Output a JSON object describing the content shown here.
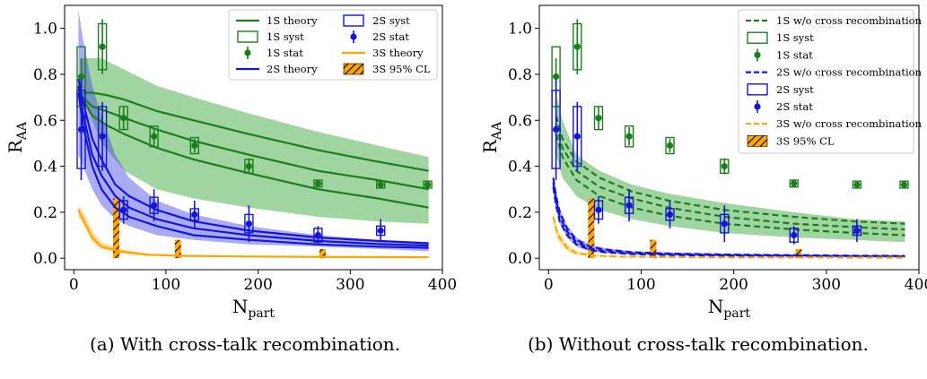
{
  "chart_data": [
    {
      "type": "line",
      "caption": "(a) With cross-talk recombination.",
      "xlabel": "N",
      "xlabel_sub": "part",
      "ylabel": "R",
      "ylabel_sub": "AA",
      "xlim": [
        -10,
        400
      ],
      "ylim": [
        -0.05,
        1.1
      ],
      "xticks": [
        "0",
        "100",
        "200",
        "300",
        "400"
      ],
      "yticks": [
        "0.0",
        "0.2",
        "0.4",
        "0.6",
        "0.8",
        "1.0"
      ],
      "legend_position": "top-right",
      "legend": [
        {
          "label": "1S theory",
          "kind": "line",
          "color": "#1a7f1a"
        },
        {
          "label": "1S syst",
          "kind": "box",
          "color": "#1a7f1a"
        },
        {
          "label": "1S stat",
          "kind": "point",
          "color": "#1a7f1a"
        },
        {
          "label": "2S theory",
          "kind": "line",
          "color": "#1515d6"
        },
        {
          "label": "2S syst",
          "kind": "box",
          "color": "#1515d6"
        },
        {
          "label": "2S stat",
          "kind": "point",
          "color": "#1515d6"
        },
        {
          "label": "3S theory",
          "kind": "line",
          "color": "#ffa500"
        },
        {
          "label": "3S 95% CL",
          "kind": "hatch",
          "color": "#ffa500"
        }
      ],
      "bands": [
        {
          "name": "1S",
          "color": "#2ca02c",
          "opacity": 0.45,
          "x": [
            8,
            30,
            55,
            90,
            130,
            190,
            265,
            330,
            385
          ],
          "upper": [
            0.87,
            0.87,
            0.82,
            0.75,
            0.7,
            0.63,
            0.55,
            0.49,
            0.44
          ],
          "lower": [
            0.72,
            0.5,
            0.38,
            0.3,
            0.26,
            0.22,
            0.18,
            0.16,
            0.15
          ]
        },
        {
          "name": "2S",
          "color": "#4444e6",
          "opacity": 0.45,
          "x": [
            5,
            10,
            20,
            30,
            45,
            60,
            90,
            130,
            190,
            265,
            330,
            385
          ],
          "upper": [
            1.08,
            0.95,
            0.75,
            0.62,
            0.45,
            0.35,
            0.25,
            0.19,
            0.14,
            0.1,
            0.08,
            0.07
          ],
          "lower": [
            0.45,
            0.4,
            0.3,
            0.23,
            0.17,
            0.14,
            0.1,
            0.08,
            0.06,
            0.05,
            0.04,
            0.03
          ]
        },
        {
          "name": "3S",
          "color": "#ffa500",
          "opacity": 0.4,
          "x": [
            5,
            10,
            20,
            30,
            50,
            80,
            120,
            200,
            300,
            385
          ],
          "upper": [
            0.23,
            0.2,
            0.12,
            0.07,
            0.04,
            0.02,
            0.015,
            0.01,
            0.008,
            0.006
          ],
          "lower": [
            0.18,
            0.15,
            0.07,
            0.04,
            0.02,
            0.01,
            0.008,
            0.005,
            0.004,
            0.003
          ]
        }
      ],
      "series": [
        {
          "name": "1S theory",
          "color": "#1a7f1a",
          "width": 2.2,
          "dash": "",
          "x": [
            10,
            20,
            35,
            55,
            90,
            130,
            190,
            265,
            330,
            385
          ],
          "y": [
            0.72,
            0.72,
            0.71,
            0.69,
            0.64,
            0.6,
            0.54,
            0.47,
            0.42,
            0.38
          ]
        },
        {
          "name": "1S theory",
          "color": "#1a7f1a",
          "width": 2.2,
          "dash": "",
          "x": [
            10,
            20,
            35,
            55,
            90,
            130,
            190,
            265,
            330,
            385
          ],
          "y": [
            0.7,
            0.66,
            0.64,
            0.61,
            0.56,
            0.51,
            0.45,
            0.38,
            0.34,
            0.3
          ]
        },
        {
          "name": "1S theory",
          "color": "#1a7f1a",
          "width": 2.2,
          "dash": "",
          "x": [
            10,
            20,
            35,
            55,
            90,
            130,
            190,
            265,
            330,
            385
          ],
          "y": [
            0.69,
            0.62,
            0.58,
            0.54,
            0.48,
            0.43,
            0.37,
            0.3,
            0.26,
            0.22
          ]
        },
        {
          "name": "2S theory",
          "color": "#1515d6",
          "width": 2.2,
          "dash": "",
          "x": [
            5,
            10,
            20,
            30,
            45,
            60,
            90,
            130,
            190,
            265,
            330,
            385
          ],
          "y": [
            0.78,
            0.68,
            0.52,
            0.43,
            0.32,
            0.27,
            0.21,
            0.16,
            0.12,
            0.09,
            0.075,
            0.065
          ]
        },
        {
          "name": "2S theory",
          "color": "#1515d6",
          "width": 2.2,
          "dash": "",
          "x": [
            5,
            10,
            20,
            30,
            45,
            60,
            90,
            130,
            190,
            265,
            330,
            385
          ],
          "y": [
            0.75,
            0.63,
            0.45,
            0.36,
            0.27,
            0.22,
            0.17,
            0.13,
            0.1,
            0.075,
            0.062,
            0.055
          ]
        },
        {
          "name": "2S theory",
          "color": "#1515d6",
          "width": 2.2,
          "dash": "",
          "x": [
            5,
            10,
            20,
            30,
            45,
            60,
            90,
            130,
            190,
            265,
            330,
            385
          ],
          "y": [
            0.72,
            0.58,
            0.4,
            0.3,
            0.22,
            0.18,
            0.14,
            0.1,
            0.08,
            0.06,
            0.05,
            0.045
          ]
        },
        {
          "name": "3S theory",
          "color": "#ffa500",
          "width": 2.2,
          "dash": "",
          "x": [
            5,
            10,
            20,
            30,
            50,
            80,
            120,
            200,
            300,
            385
          ],
          "y": [
            0.21,
            0.17,
            0.09,
            0.05,
            0.03,
            0.015,
            0.01,
            0.007,
            0.005,
            0.004
          ]
        }
      ],
      "points": [
        {
          "name": "1S stat",
          "color": "#1a7f1a",
          "x": [
            8,
            31,
            54,
            87,
            131,
            190,
            265,
            333,
            384
          ],
          "y": [
            0.79,
            0.92,
            0.61,
            0.53,
            0.49,
            0.4,
            0.325,
            0.32,
            0.32
          ],
          "err": [
            0.08,
            0.12,
            0.05,
            0.04,
            0.03,
            0.035,
            0.015,
            0.015,
            0.015
          ],
          "syst": [
            0.13,
            0.1,
            0.05,
            0.045,
            0.035,
            0.03,
            0.015,
            0.015,
            0.015
          ]
        },
        {
          "name": "2S stat",
          "color": "#1515d6",
          "x": [
            8,
            31,
            54,
            87,
            131,
            190,
            265,
            333
          ],
          "y": [
            0.56,
            0.53,
            0.21,
            0.23,
            0.19,
            0.15,
            0.1,
            0.12
          ],
          "err": [
            0.22,
            0.15,
            0.06,
            0.07,
            0.06,
            0.08,
            0.04,
            0.05
          ],
          "syst": [
            0.17,
            0.13,
            0.04,
            0.035,
            0.025,
            0.04,
            0.03,
            0.02
          ]
        }
      ],
      "hatch_bars": [
        {
          "x": 46,
          "y": 0.26
        },
        {
          "x": 113,
          "y": 0.08
        },
        {
          "x": 270,
          "y": 0.04
        }
      ]
    },
    {
      "type": "line",
      "caption": "(b) Without cross-talk recombination.",
      "xlabel": "N",
      "xlabel_sub": "part",
      "ylabel": "R",
      "ylabel_sub": "AA",
      "xlim": [
        -10,
        400
      ],
      "ylim": [
        -0.05,
        1.1
      ],
      "xticks": [
        "0",
        "100",
        "200",
        "300",
        "400"
      ],
      "yticks": [
        "0.0",
        "0.2",
        "0.4",
        "0.6",
        "0.8",
        "1.0"
      ],
      "legend_position": "top-right",
      "legend": [
        {
          "label": "1S w/o cross recombination",
          "kind": "dash",
          "color": "#1a7f1a"
        },
        {
          "label": "1S syst",
          "kind": "box",
          "color": "#1a7f1a"
        },
        {
          "label": "1S stat",
          "kind": "point",
          "color": "#1a7f1a"
        },
        {
          "label": "2S w/o cross recombination",
          "kind": "dash",
          "color": "#1515d6"
        },
        {
          "label": "2S syst",
          "kind": "box",
          "color": "#1515d6"
        },
        {
          "label": "2S stat",
          "kind": "point",
          "color": "#1515d6"
        },
        {
          "label": "3S w/o cross recombination",
          "kind": "dash",
          "color": "#ffa500"
        },
        {
          "label": "3S 95% CL",
          "kind": "hatch",
          "color": "#ffa500"
        }
      ],
      "bands": [
        {
          "name": "1S",
          "color": "#2ca02c",
          "opacity": 0.45,
          "x": [
            8,
            15,
            30,
            55,
            90,
            130,
            190,
            265,
            330,
            385
          ],
          "upper": [
            0.72,
            0.6,
            0.45,
            0.38,
            0.32,
            0.28,
            0.24,
            0.2,
            0.17,
            0.16
          ],
          "lower": [
            0.45,
            0.35,
            0.27,
            0.21,
            0.17,
            0.14,
            0.11,
            0.09,
            0.08,
            0.07
          ]
        },
        {
          "name": "2S",
          "color": "#4444e6",
          "opacity": 0.45,
          "x": [
            5,
            8,
            12,
            20,
            30,
            45,
            60,
            90,
            130,
            190,
            265,
            330,
            385
          ],
          "upper": [
            0.37,
            0.3,
            0.22,
            0.14,
            0.09,
            0.06,
            0.045,
            0.03,
            0.025,
            0.02,
            0.016,
            0.014,
            0.013
          ],
          "lower": [
            0.3,
            0.22,
            0.15,
            0.09,
            0.05,
            0.03,
            0.022,
            0.015,
            0.012,
            0.01,
            0.008,
            0.007,
            0.006
          ]
        },
        {
          "name": "3S",
          "color": "#ffa500",
          "opacity": 0.4,
          "x": [
            5,
            10,
            20,
            30,
            50,
            80,
            120,
            200,
            300,
            385
          ],
          "upper": [
            0.2,
            0.12,
            0.06,
            0.03,
            0.015,
            0.01,
            0.007,
            0.005,
            0.004,
            0.003
          ],
          "lower": [
            0.15,
            0.08,
            0.03,
            0.015,
            0.008,
            0.004,
            0.003,
            0.002,
            0.002,
            0.001
          ]
        }
      ],
      "series": [
        {
          "name": "1S w/o cross recombination",
          "color": "#1a7f1a",
          "width": 2.2,
          "dash": "7,4",
          "x": [
            8,
            15,
            30,
            55,
            90,
            130,
            190,
            265,
            330,
            385
          ],
          "y": [
            0.62,
            0.52,
            0.42,
            0.35,
            0.29,
            0.25,
            0.21,
            0.18,
            0.16,
            0.15
          ]
        },
        {
          "name": "1S w/o cross recombination",
          "color": "#1a7f1a",
          "width": 2.2,
          "dash": "7,4",
          "x": [
            8,
            15,
            30,
            55,
            90,
            130,
            190,
            265,
            330,
            385
          ],
          "y": [
            0.58,
            0.48,
            0.38,
            0.31,
            0.26,
            0.22,
            0.18,
            0.15,
            0.135,
            0.125
          ]
        },
        {
          "name": "1S w/o cross recombination",
          "color": "#1a7f1a",
          "width": 2.2,
          "dash": "7,4",
          "x": [
            8,
            15,
            30,
            55,
            90,
            130,
            190,
            265,
            330,
            385
          ],
          "y": [
            0.54,
            0.44,
            0.34,
            0.27,
            0.22,
            0.185,
            0.15,
            0.125,
            0.11,
            0.1
          ]
        },
        {
          "name": "2S w/o cross recombination",
          "color": "#1515d6",
          "width": 2.2,
          "dash": "7,4",
          "x": [
            5,
            8,
            12,
            20,
            30,
            45,
            60,
            90,
            130,
            190,
            265,
            330,
            385
          ],
          "y": [
            0.35,
            0.27,
            0.2,
            0.13,
            0.08,
            0.05,
            0.038,
            0.026,
            0.02,
            0.016,
            0.013,
            0.011,
            0.01
          ]
        },
        {
          "name": "2S w/o cross recombination",
          "color": "#1515d6",
          "width": 2.2,
          "dash": "7,4",
          "x": [
            5,
            8,
            12,
            20,
            30,
            45,
            60,
            90,
            130,
            190,
            265,
            330,
            385
          ],
          "y": [
            0.33,
            0.25,
            0.18,
            0.115,
            0.07,
            0.043,
            0.032,
            0.022,
            0.017,
            0.013,
            0.011,
            0.009,
            0.008
          ]
        },
        {
          "name": "2S w/o cross recombination",
          "color": "#1515d6",
          "width": 2.2,
          "dash": "7,4",
          "x": [
            5,
            8,
            12,
            20,
            30,
            45,
            60,
            90,
            130,
            190,
            265,
            330,
            385
          ],
          "y": [
            0.31,
            0.23,
            0.16,
            0.1,
            0.06,
            0.036,
            0.026,
            0.018,
            0.014,
            0.011,
            0.009,
            0.007,
            0.006
          ]
        },
        {
          "name": "3S w/o cross recombination",
          "color": "#ffa500",
          "width": 2.2,
          "dash": "7,4",
          "x": [
            5,
            10,
            20,
            30,
            50,
            80,
            120,
            200,
            300,
            385
          ],
          "y": [
            0.18,
            0.1,
            0.045,
            0.022,
            0.011,
            0.007,
            0.005,
            0.003,
            0.003,
            0.002
          ]
        }
      ],
      "points": [
        {
          "name": "1S stat",
          "color": "#1a7f1a",
          "x": [
            8,
            31,
            54,
            87,
            131,
            190,
            265,
            333,
            384
          ],
          "y": [
            0.79,
            0.92,
            0.61,
            0.53,
            0.49,
            0.4,
            0.325,
            0.32,
            0.32
          ],
          "err": [
            0.08,
            0.12,
            0.05,
            0.04,
            0.03,
            0.035,
            0.015,
            0.015,
            0.015
          ],
          "syst": [
            0.13,
            0.1,
            0.05,
            0.045,
            0.035,
            0.03,
            0.015,
            0.015,
            0.015
          ]
        },
        {
          "name": "2S stat",
          "color": "#1515d6",
          "x": [
            8,
            31,
            54,
            87,
            131,
            190,
            265,
            333
          ],
          "y": [
            0.56,
            0.53,
            0.21,
            0.23,
            0.19,
            0.15,
            0.1,
            0.12
          ],
          "err": [
            0.22,
            0.15,
            0.06,
            0.07,
            0.06,
            0.08,
            0.04,
            0.05
          ],
          "syst": [
            0.17,
            0.13,
            0.04,
            0.035,
            0.025,
            0.04,
            0.03,
            0.02
          ]
        }
      ],
      "hatch_bars": [
        {
          "x": 46,
          "y": 0.26
        },
        {
          "x": 113,
          "y": 0.08
        },
        {
          "x": 270,
          "y": 0.04
        }
      ]
    }
  ]
}
